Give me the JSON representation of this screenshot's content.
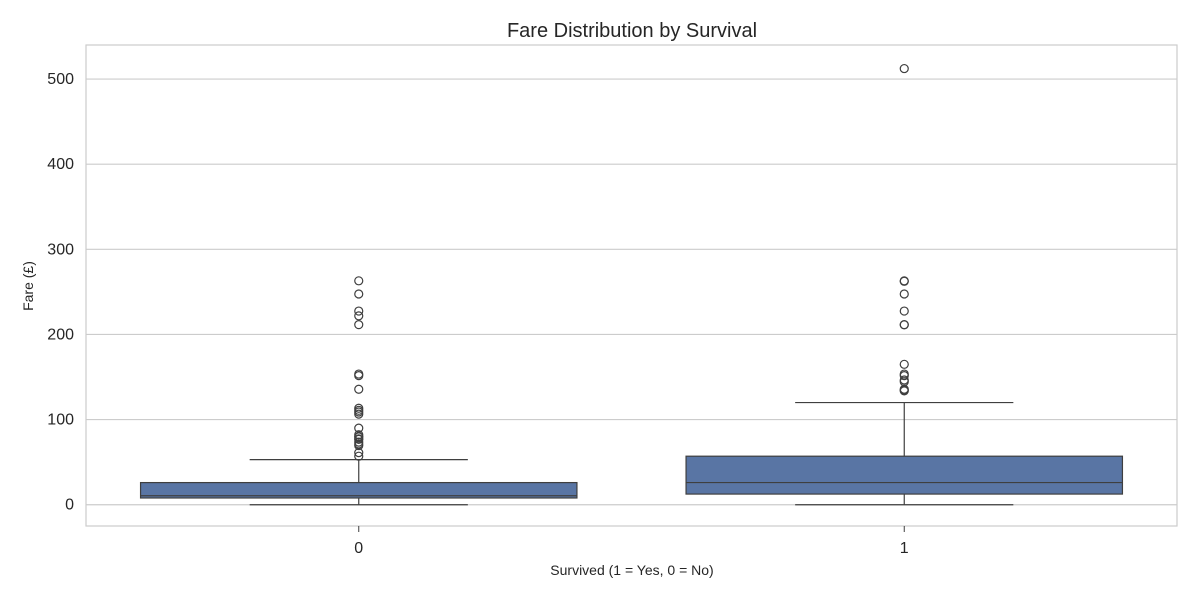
{
  "chart_data": {
    "type": "box",
    "title": "Fare Distribution by Survival",
    "xlabel": "Survived (1 = Yes, 0 = No)",
    "ylabel": "Fare (£)",
    "categories": [
      "0",
      "1"
    ],
    "ylim": [
      -25,
      540
    ],
    "y_ticks": [
      0,
      100,
      200,
      300,
      400,
      500
    ],
    "grid": true,
    "box_color": "#5975a4",
    "line_color": "#3f3f3f",
    "grid_color": "#cccccc",
    "boxes": [
      {
        "category": "0",
        "whisker_low": 0,
        "q1": 7.9,
        "median": 10.5,
        "q3": 26,
        "whisker_high": 53,
        "outliers": [
          263,
          247.5,
          227.5,
          221.8,
          211.5,
          153.5,
          151.6,
          135.6,
          113.3,
          110.9,
          108.9,
          106.4,
          90,
          82.2,
          80.0,
          79.6,
          77.3,
          76.7,
          73.5,
          71.3,
          69.6,
          61.2,
          57.0
        ]
      },
      {
        "category": "1",
        "whisker_low": 0,
        "q1": 12.5,
        "median": 26,
        "q3": 57,
        "whisker_high": 120,
        "outliers": [
          512.3,
          263,
          262.4,
          247.5,
          227.5,
          211.3,
          211.5,
          164.9,
          153.5,
          151.6,
          146.5,
          144.5,
          135.6,
          134.5,
          133.7
        ]
      }
    ]
  }
}
